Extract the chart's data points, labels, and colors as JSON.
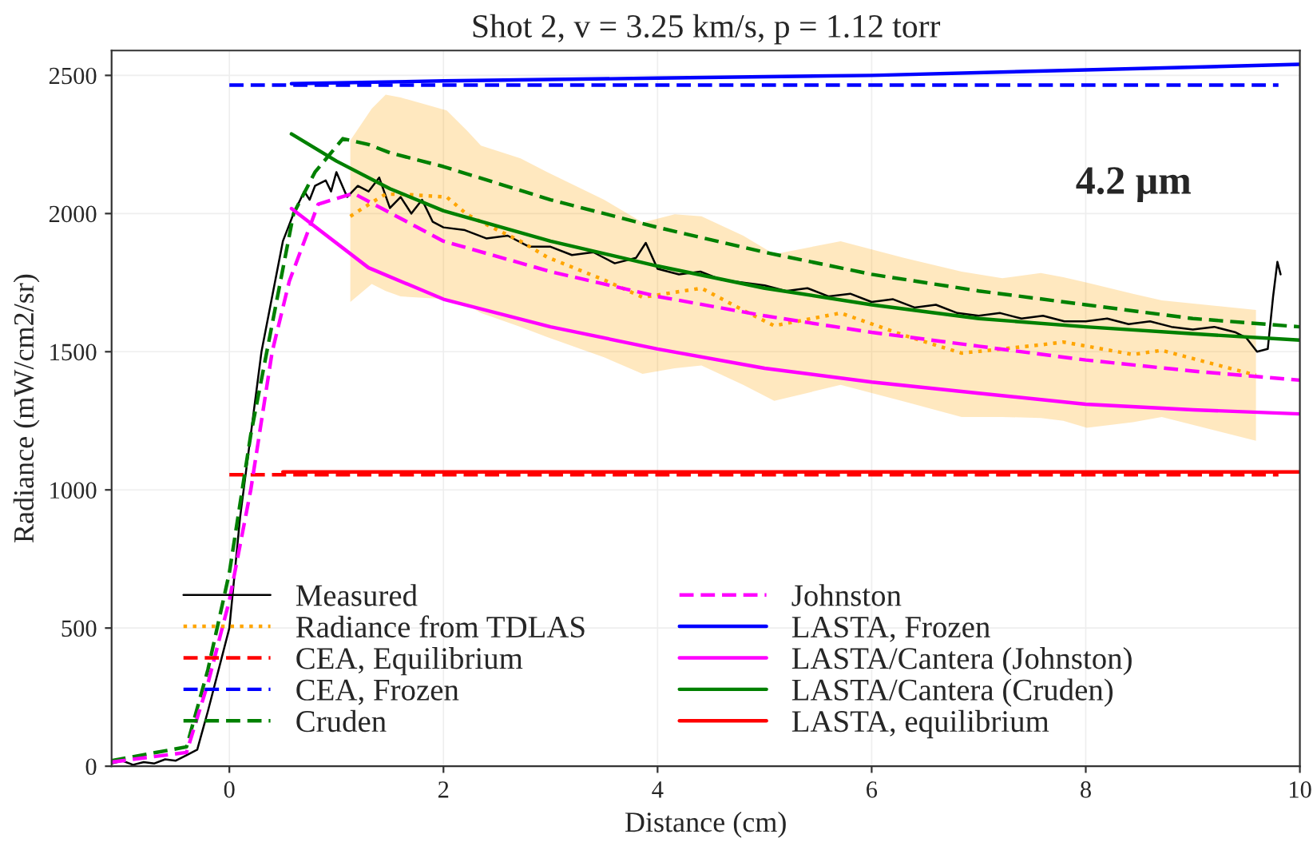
{
  "chart_data": {
    "type": "line",
    "title": "Shot 2, v = 3.25 km/s, p = 1.12 torr",
    "xlabel": "Distance (cm)",
    "ylabel": "Radiance (mW/cm2/sr)",
    "xlim": [
      -1.1,
      10
    ],
    "ylim": [
      0,
      2590
    ],
    "xticks": [
      0,
      2,
      4,
      6,
      8,
      10
    ],
    "yticks": [
      0,
      500,
      1000,
      1500,
      2000,
      2500
    ],
    "grid": true,
    "legend": "bottom",
    "annotations": [
      "4.2 μm"
    ],
    "series": [
      {
        "name": "Measured",
        "color": "#000000",
        "line_style": "solid",
        "x": [
          -1.1,
          -1.0,
          -0.9,
          -0.8,
          -0.7,
          -0.6,
          -0.5,
          -0.4,
          -0.3,
          -0.2,
          -0.1,
          0.0,
          0.05,
          0.1,
          0.15,
          0.2,
          0.3,
          0.4,
          0.5,
          0.55,
          0.6,
          0.7,
          0.75,
          0.8,
          0.9,
          0.95,
          1.0,
          1.1,
          1.2,
          1.3,
          1.4,
          1.5,
          1.6,
          1.7,
          1.8,
          1.9,
          2.0,
          2.2,
          2.4,
          2.6,
          2.8,
          3.0,
          3.2,
          3.4,
          3.6,
          3.8,
          3.89,
          4.0,
          4.2,
          4.4,
          4.6,
          4.8,
          5.0,
          5.2,
          5.4,
          5.6,
          5.8,
          6.0,
          6.2,
          6.4,
          6.6,
          6.8,
          7.0,
          7.2,
          7.4,
          7.6,
          7.8,
          8.0,
          8.2,
          8.4,
          8.6,
          8.8,
          9.0,
          9.2,
          9.4,
          9.5,
          9.6,
          9.7,
          9.75,
          9.79,
          9.82
        ],
        "values": [
          10,
          20,
          5,
          15,
          10,
          25,
          20,
          40,
          60,
          200,
          350,
          500,
          700,
          900,
          1050,
          1200,
          1500,
          1700,
          1900,
          1950,
          2000,
          2080,
          2050,
          2100,
          2120,
          2080,
          2150,
          2060,
          2100,
          2080,
          2130,
          2020,
          2060,
          2000,
          2050,
          1970,
          1950,
          1940,
          1910,
          1920,
          1880,
          1880,
          1850,
          1860,
          1820,
          1840,
          1894,
          1800,
          1780,
          1790,
          1760,
          1750,
          1740,
          1720,
          1730,
          1700,
          1710,
          1680,
          1690,
          1660,
          1670,
          1640,
          1630,
          1640,
          1620,
          1630,
          1610,
          1610,
          1620,
          1600,
          1610,
          1590,
          1580,
          1590,
          1570,
          1550,
          1500,
          1510,
          1700,
          1825,
          1780
        ]
      },
      {
        "name": "Radiance from TDLAS",
        "color": "#ffa500",
        "line_style": "dotted",
        "x": [
          1.13,
          1.33,
          1.46,
          1.6,
          2.03,
          2.22,
          2.35,
          2.72,
          2.97,
          3.5,
          3.86,
          4.16,
          4.41,
          4.8,
          5.09,
          5.71,
          6.3,
          6.84,
          7.22,
          7.58,
          7.79,
          8.01,
          8.44,
          8.71,
          9.59
        ],
        "values": [
          1990,
          2040,
          2070,
          2070,
          2060,
          1997,
          1970,
          1900,
          1842,
          1760,
          1697,
          1715,
          1730,
          1650,
          1594,
          1640,
          1560,
          1495,
          1510,
          1525,
          1535,
          1520,
          1490,
          1505,
          1415
        ],
        "upper": [
          2265,
          2380,
          2430,
          2420,
          2373,
          2300,
          2246,
          2200,
          2150,
          2050,
          1968,
          1997,
          1990,
          1920,
          1853,
          1900,
          1840,
          1790,
          1766,
          1785,
          1770,
          1750,
          1710,
          1686,
          1651
        ],
        "lower": [
          1680,
          1745,
          1720,
          1700,
          1690,
          1670,
          1640,
          1590,
          1553,
          1480,
          1420,
          1440,
          1450,
          1380,
          1322,
          1380,
          1320,
          1264,
          1264,
          1260,
          1250,
          1225,
          1245,
          1264,
          1178
        ]
      },
      {
        "name": "CEA, Equilibrium",
        "color": "#ff0000",
        "line_style": "dashed",
        "x": [
          0,
          9.8
        ],
        "values": [
          1055,
          1055
        ]
      },
      {
        "name": "CEA, Frozen",
        "color": "#0000ff",
        "line_style": "dashed",
        "x": [
          0,
          9.8
        ],
        "values": [
          2465,
          2465
        ]
      },
      {
        "name": "Cruden",
        "color": "#008000",
        "line_style": "dashed",
        "x": [
          -1.1,
          -0.4,
          -0.2,
          0,
          0.2,
          0.4,
          0.6,
          0.8,
          1.06,
          1.3,
          1.5,
          2,
          3,
          4,
          5,
          6,
          7,
          8,
          9,
          10
        ],
        "values": [
          20,
          70,
          350,
          700,
          1200,
          1600,
          2000,
          2150,
          2271,
          2250,
          2220,
          2170,
          2050,
          1950,
          1860,
          1780,
          1720,
          1670,
          1620,
          1590
        ]
      },
      {
        "name": "Johnston",
        "color": "#ff00ff",
        "line_style": "dashed",
        "x": [
          -1.1,
          -0.4,
          -0.2,
          0,
          0.2,
          0.4,
          0.56,
          0.83,
          1.16,
          2,
          3,
          4,
          5,
          6,
          7,
          8,
          9,
          10
        ],
        "values": [
          15,
          50,
          300,
          600,
          1000,
          1500,
          1755,
          2034,
          2073,
          1900,
          1790,
          1700,
          1630,
          1570,
          1520,
          1470,
          1430,
          1397
        ]
      },
      {
        "name": "LASTA, Frozen",
        "color": "#0000ff",
        "line_style": "solid",
        "x": [
          0.58,
          2,
          4,
          6,
          8,
          10
        ],
        "values": [
          2470,
          2480,
          2490,
          2500,
          2520,
          2540
        ]
      },
      {
        "name": "LASTA/Cantera (Johnston)",
        "color": "#ff00ff",
        "line_style": "solid",
        "x": [
          0.58,
          1.3,
          2,
          3,
          4,
          5,
          6,
          7,
          8,
          9,
          10
        ],
        "values": [
          2018,
          1804,
          1690,
          1590,
          1510,
          1440,
          1390,
          1350,
          1310,
          1290,
          1275
        ]
      },
      {
        "name": "LASTA/Cantera (Cruden)",
        "color": "#008000",
        "line_style": "solid",
        "x": [
          0.58,
          1,
          1.5,
          2,
          3,
          4,
          5,
          6,
          7,
          8,
          9,
          10
        ],
        "values": [
          2288,
          2190,
          2090,
          2010,
          1900,
          1810,
          1730,
          1670,
          1620,
          1590,
          1565,
          1542
        ]
      },
      {
        "name": "LASTA, equilibrium",
        "color": "#ff0000",
        "line_style": "solid",
        "x": [
          0.5,
          10
        ],
        "values": [
          1065,
          1065
        ]
      }
    ]
  }
}
